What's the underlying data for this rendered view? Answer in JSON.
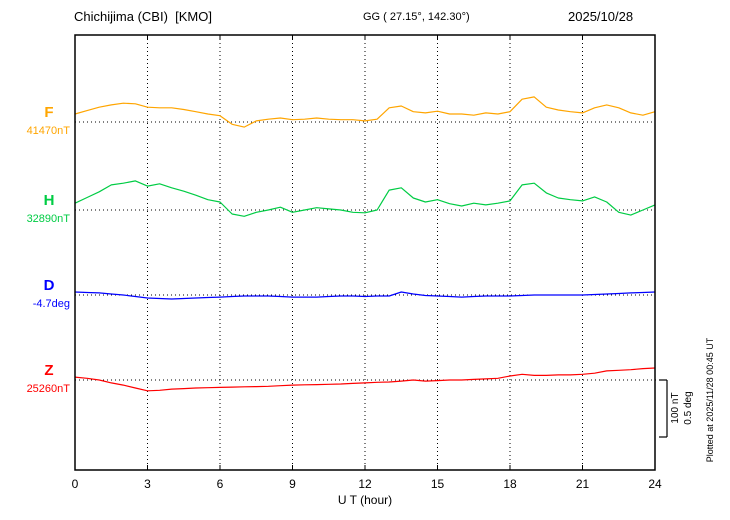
{
  "chart_data": {
    "type": "line",
    "title": "Chichijima (CBI)  [KMO]",
    "subtitle": "GG ( 27.15°, 142.30°)",
    "date": "2025/10/28",
    "xlabel": "U T (hour)",
    "x_ticks": [
      0,
      3,
      6,
      9,
      12,
      15,
      18,
      21,
      24
    ],
    "x_range_hours": [
      0,
      24
    ],
    "sample_step_hours": 0.5,
    "grid": {
      "vertical_gridlines": "dotted at 3-hour intervals",
      "baselines": "dotted horizontal line at each trace baseline"
    },
    "scale_bar": {
      "labels": [
        "100 nT",
        "0.5 deg"
      ],
      "nT": 100,
      "deg": 0.5
    },
    "plotted_note": "Plotted at 2025/11/28 00:45 UT",
    "series": [
      {
        "name": "F",
        "unit": "nT",
        "baseline_value": "41470nT",
        "color": "#FFA500",
        "offsets_from_baseline": [
          14,
          20,
          26,
          30,
          33,
          32,
          26,
          25,
          25,
          22,
          18,
          14,
          11,
          -4,
          -9,
          2,
          5,
          7,
          4,
          5,
          7,
          5,
          4,
          4,
          2,
          5,
          25,
          28,
          18,
          16,
          19,
          14,
          14,
          12,
          16,
          14,
          18,
          40,
          44,
          26,
          21,
          18,
          16,
          25,
          30,
          25,
          16,
          12,
          18
        ]
      },
      {
        "name": "H",
        "unit": "nT",
        "baseline_value": "32890nT",
        "color": "#00CC44",
        "offsets_from_baseline": [
          12,
          22,
          32,
          44,
          47,
          51,
          42,
          46,
          39,
          33,
          26,
          18,
          14,
          -7,
          -11,
          -4,
          0,
          5,
          -4,
          0,
          4,
          2,
          0,
          -4,
          -5,
          0,
          35,
          39,
          21,
          14,
          18,
          11,
          7,
          12,
          9,
          12,
          16,
          44,
          47,
          30,
          21,
          18,
          16,
          23,
          14,
          -4,
          -9,
          0,
          9
        ]
      },
      {
        "name": "D",
        "unit": "deg",
        "baseline_value": "-4.7deg",
        "color": "#0000FF",
        "offsets_from_baseline": [
          0.026,
          0.022,
          0.018,
          0.009,
          0,
          -0.013,
          -0.026,
          -0.031,
          -0.035,
          -0.031,
          -0.026,
          -0.022,
          -0.018,
          -0.013,
          -0.009,
          -0.009,
          -0.009,
          -0.013,
          -0.018,
          -0.018,
          -0.018,
          -0.013,
          -0.009,
          -0.009,
          -0.013,
          -0.009,
          -0.009,
          0.026,
          0.009,
          -0.004,
          -0.009,
          -0.013,
          -0.018,
          -0.013,
          -0.009,
          -0.009,
          -0.009,
          -0.004,
          0,
          0,
          0,
          0,
          0,
          0.004,
          0.009,
          0.013,
          0.018,
          0.022,
          0.026
        ]
      },
      {
        "name": "Z",
        "unit": "nT",
        "baseline_value": "25260nT",
        "color": "#FF0000",
        "offsets_from_baseline": [
          5,
          3,
          0,
          -5,
          -9,
          -14,
          -19,
          -18,
          -16,
          -15,
          -14,
          -13.5,
          -13,
          -12.5,
          -12,
          -11.5,
          -11,
          -10,
          -9,
          -8.5,
          -8,
          -7.5,
          -7,
          -6,
          -5,
          -4,
          -3.5,
          -2,
          0,
          -2,
          -1,
          0,
          0,
          1,
          2,
          3,
          7,
          10,
          8,
          8,
          9,
          9,
          10,
          12,
          16,
          17,
          18,
          20,
          21
        ]
      }
    ]
  }
}
